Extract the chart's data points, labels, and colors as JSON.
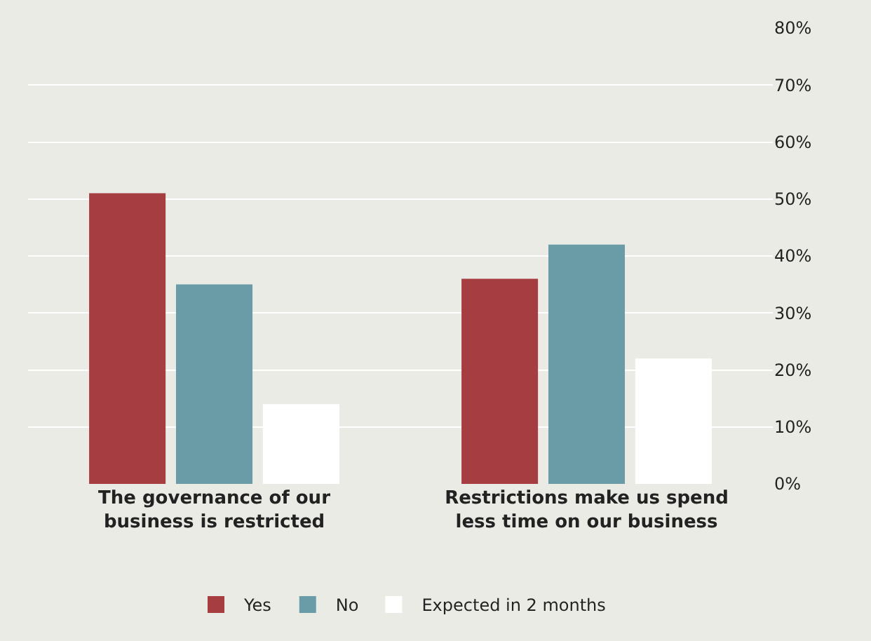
{
  "chart_data": {
    "type": "bar",
    "categories": [
      "The governance of our business is restricted",
      "Restrictions make us spend less time on our business"
    ],
    "series": [
      {
        "name": "Yes",
        "color": "#a63d40",
        "values": [
          51,
          36
        ]
      },
      {
        "name": "No",
        "color": "#6a9ca8",
        "values": [
          35,
          42
        ]
      },
      {
        "name": "Expected in 2 months",
        "color": "#ffffff",
        "values": [
          14,
          22
        ]
      }
    ],
    "ylim": [
      0,
      80
    ],
    "yticks": [
      {
        "value": 0,
        "label": "0%"
      },
      {
        "value": 10,
        "label": "10%"
      },
      {
        "value": 20,
        "label": "20%"
      },
      {
        "value": 30,
        "label": "30%"
      },
      {
        "value": 40,
        "label": "40%"
      },
      {
        "value": 50,
        "label": "50%"
      },
      {
        "value": 60,
        "label": "60%"
      },
      {
        "value": 70,
        "label": "70%"
      },
      {
        "value": 80,
        "label": "80%"
      }
    ],
    "grid": "y",
    "legend": "bottom"
  }
}
